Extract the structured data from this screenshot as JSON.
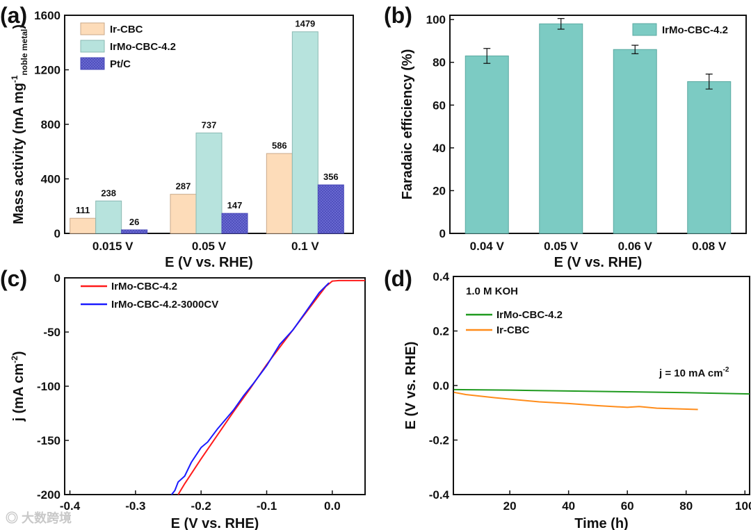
{
  "watermark": "大数跨境",
  "colors": {
    "ir_cbc": "#fddcb9",
    "irmo": "#b7e3dd",
    "ptc": "#6f6fd6",
    "faradaic": "#7ccbc3",
    "red": "#ff1a1a",
    "blue": "#1a1aff",
    "green": "#1f9a1f",
    "orange": "#ff8c1a"
  },
  "chart_data": [
    {
      "panel": "(a)",
      "type": "bar",
      "categories": [
        "0.015 V",
        "0.05 V",
        "0.1 V"
      ],
      "series": [
        {
          "name": "Ir-CBC",
          "values": [
            111,
            287,
            586
          ]
        },
        {
          "name": "IrMo-CBC-4.2",
          "values": [
            238,
            737,
            1479
          ]
        },
        {
          "name": "Pt/C",
          "values": [
            26,
            147,
            356
          ]
        }
      ],
      "xlabel": "E (V vs. RHE)",
      "ylabel": {
        "main": "Mass activity (mA mg",
        "sup": "-1",
        "sub": "noble metal",
        "close": ")"
      },
      "ylim": [
        0,
        1600
      ],
      "yticks": [
        "0",
        "400",
        "800",
        "1200",
        "1600"
      ],
      "legend": "top-left"
    },
    {
      "panel": "(b)",
      "type": "bar",
      "categories": [
        "0.04 V",
        "0.05 V",
        "0.06 V",
        "0.08 V"
      ],
      "series": [
        {
          "name": "IrMo-CBC-4.2",
          "values": [
            83,
            98,
            86,
            71
          ],
          "errors": [
            3.5,
            2.5,
            2,
            3.5
          ]
        }
      ],
      "xlabel": "E (V vs. RHE)",
      "ylabel": "Faradaic efficiency (%)",
      "ylim": [
        0,
        102
      ],
      "yticks": [
        "0",
        "20",
        "40",
        "60",
        "80",
        "100"
      ],
      "legend": "top-right"
    },
    {
      "panel": "(c)",
      "type": "line",
      "xlabel": "E (V vs. RHE)",
      "ylabel": {
        "main": "j (mA cm",
        "sup": "-2",
        "close": ")"
      },
      "xlim": [
        -0.408,
        0.05
      ],
      "ylim": [
        -200,
        0
      ],
      "xticks": [
        "-0.4",
        "-0.3",
        "-0.2",
        "-0.1",
        "0.0"
      ],
      "yticks": [
        "0",
        "-50",
        "-100",
        "-150",
        "-200"
      ],
      "series": [
        {
          "name": "IrMo-CBC-4.2",
          "x": [
            -0.235,
            -0.225,
            -0.2,
            -0.175,
            -0.15,
            -0.125,
            -0.1,
            -0.075,
            -0.05,
            -0.025,
            -0.01,
            0.0,
            0.01,
            0.05
          ],
          "y": [
            -200,
            -190,
            -167,
            -145,
            -123,
            -102,
            -80,
            -60,
            -40,
            -20,
            -8,
            -3,
            -2.5,
            -2.5
          ]
        },
        {
          "name": "IrMo-CBC-4.2-3000CV",
          "x": [
            -0.245,
            -0.24,
            -0.235,
            -0.225,
            -0.215,
            -0.2,
            -0.19,
            -0.175,
            -0.165,
            -0.15,
            -0.135,
            -0.12,
            -0.1,
            -0.08,
            -0.06,
            -0.04,
            -0.02,
            -0.005
          ],
          "y": [
            -200,
            -195,
            -190,
            -182,
            -170,
            -158,
            -150,
            -140,
            -133,
            -120,
            -110,
            -97,
            -80,
            -63,
            -47,
            -31,
            -15,
            -3
          ]
        }
      ],
      "legend": "top-left"
    },
    {
      "panel": "(d)",
      "type": "line",
      "xlabel": "Time (h)",
      "ylabel": "E (V vs. RHE)",
      "xlim": [
        0.8,
        101.6
      ],
      "ylim": [
        -0.4,
        0.4
      ],
      "xticks": [
        "20",
        "40",
        "60",
        "80",
        "100"
      ],
      "yticks": [
        "0.4",
        "0.2",
        "0.0",
        "-0.2",
        "-0.4"
      ],
      "series": [
        {
          "name": "IrMo-CBC-4.2",
          "x": [
            1,
            20,
            40,
            60,
            80,
            101.6
          ],
          "y": [
            -0.015,
            -0.017,
            -0.02,
            -0.023,
            -0.026,
            -0.031
          ]
        },
        {
          "name": "Ir-CBC",
          "x": [
            1,
            5,
            15,
            30,
            40,
            50,
            60,
            64,
            70,
            84
          ],
          "y": [
            -0.025,
            -0.033,
            -0.045,
            -0.06,
            -0.066,
            -0.074,
            -0.08,
            -0.077,
            -0.083,
            -0.088
          ]
        }
      ],
      "annotations": [
        "1.0 M KOH",
        {
          "main": "j = 10 mA cm",
          "sup": "-2"
        }
      ],
      "legend": "top-left"
    }
  ]
}
